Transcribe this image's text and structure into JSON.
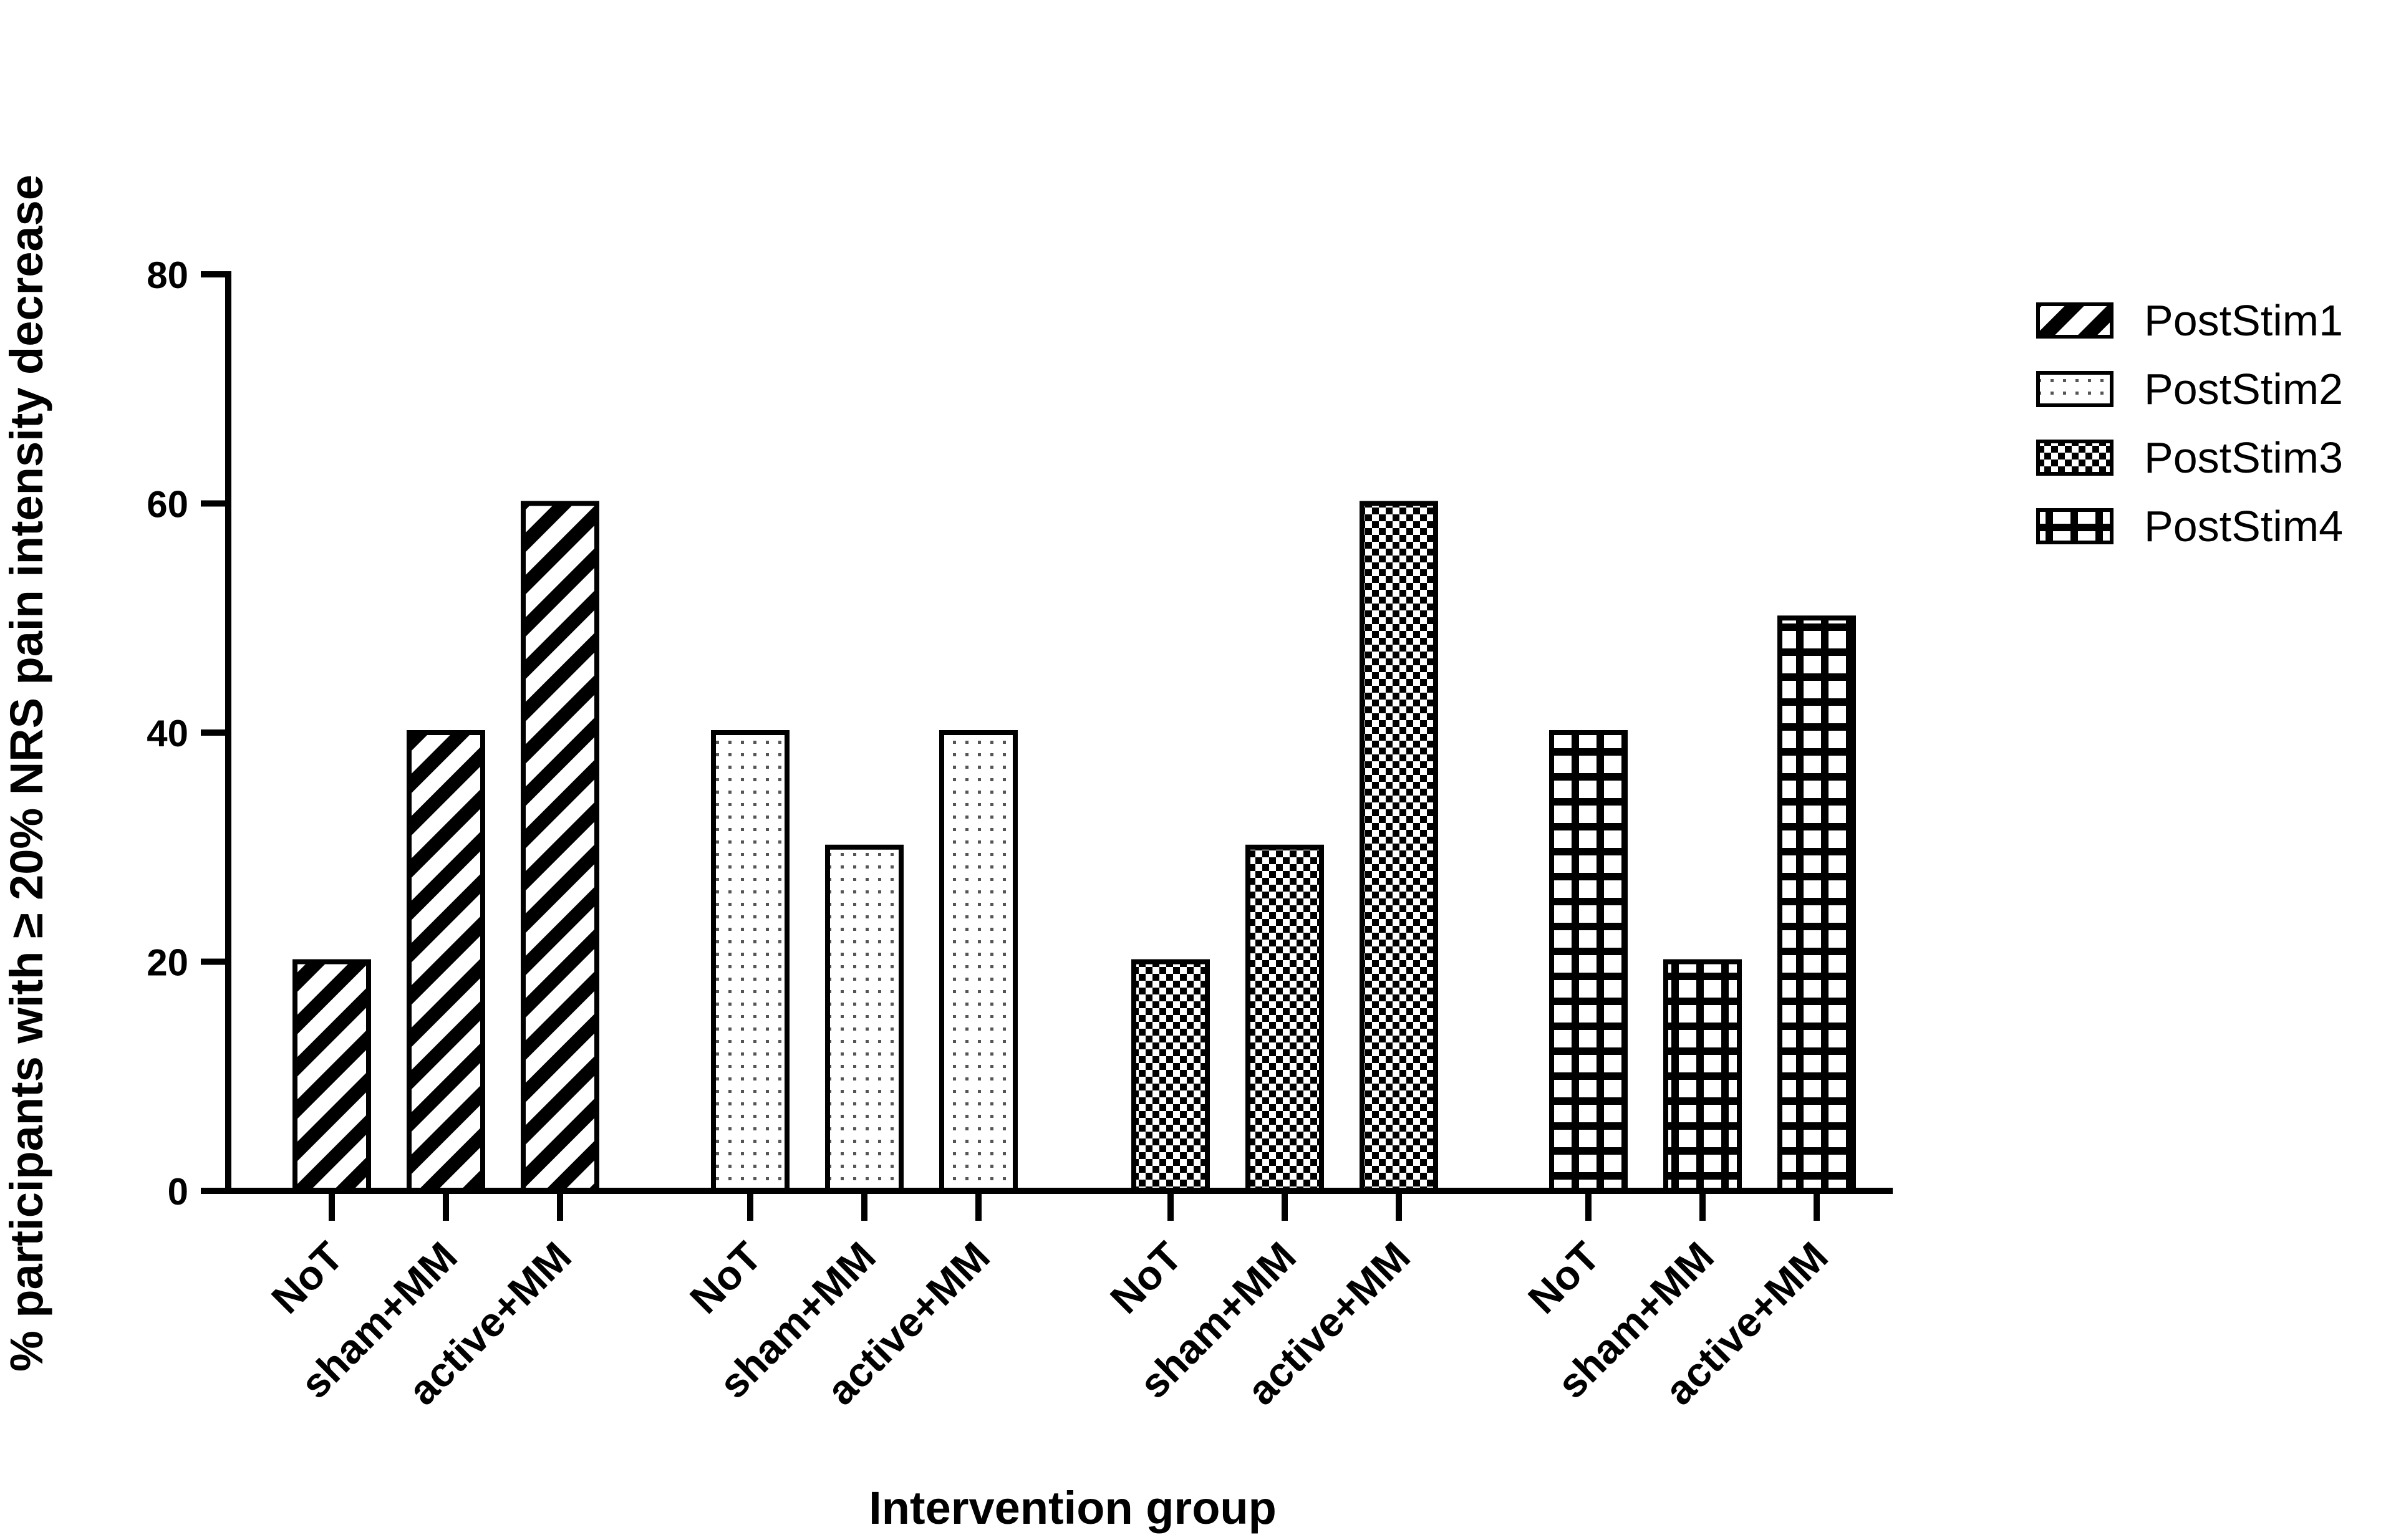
{
  "chart_data": {
    "type": "bar",
    "title": "",
    "xlabel": "Intervention group",
    "ylabel": "% participants with ≥ 20% NRS pain intensity decrease",
    "ylim": [
      0,
      80
    ],
    "yticks": [
      0,
      20,
      40,
      60,
      80
    ],
    "legend_position": "top-right",
    "groups": [
      {
        "name": "PostStim1",
        "pattern": "diagonal-stripes",
        "categories": [
          "NoT",
          "sham+MM",
          "active+MM"
        ],
        "values": [
          20,
          40,
          60
        ]
      },
      {
        "name": "PostStim2",
        "pattern": "sparse-dots",
        "categories": [
          "NoT",
          "sham+MM",
          "active+MM"
        ],
        "values": [
          40,
          30,
          40
        ]
      },
      {
        "name": "PostStim3",
        "pattern": "checkerboard",
        "categories": [
          "NoT",
          "sham+MM",
          "active+MM"
        ],
        "values": [
          20,
          30,
          60
        ]
      },
      {
        "name": "PostStim4",
        "pattern": "grid",
        "categories": [
          "NoT",
          "sham+MM",
          "active+MM"
        ],
        "values": [
          40,
          20,
          50
        ]
      }
    ],
    "colors": {
      "ink": "#000000",
      "fill": "#ffffff"
    }
  }
}
